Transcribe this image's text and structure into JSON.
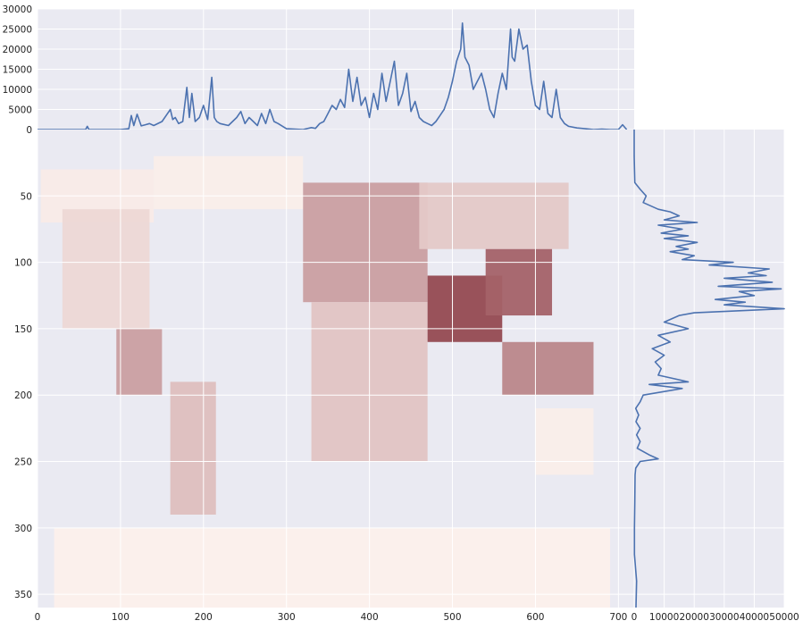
{
  "chart_data": [
    {
      "type": "heatmap",
      "name": "population-map",
      "description_free": true,
      "xlim": [
        0,
        719
      ],
      "ylim": [
        360,
        0
      ],
      "xticks": [
        0,
        100,
        200,
        300,
        400,
        500,
        600,
        700
      ],
      "yticks": [
        50,
        100,
        150,
        200,
        250,
        300,
        350
      ],
      "grid": true,
      "colormap": "Reds",
      "land_cells": [
        {
          "x0": 4,
          "x1": 140,
          "y0": 30,
          "y1": 70,
          "v": 0.04
        },
        {
          "x0": 30,
          "x1": 135,
          "y0": 60,
          "y1": 150,
          "v": 0.12
        },
        {
          "x0": 95,
          "x1": 150,
          "y0": 150,
          "y1": 200,
          "v": 0.35
        },
        {
          "x0": 160,
          "x1": 215,
          "y0": 190,
          "y1": 290,
          "v": 0.22
        },
        {
          "x0": 140,
          "x1": 320,
          "y0": 20,
          "y1": 60,
          "v": 0.03
        },
        {
          "x0": 320,
          "x1": 470,
          "y0": 40,
          "y1": 130,
          "v": 0.35
        },
        {
          "x0": 330,
          "x1": 470,
          "y0": 130,
          "y1": 250,
          "v": 0.2
        },
        {
          "x0": 460,
          "x1": 640,
          "y0": 40,
          "y1": 90,
          "v": 0.18
        },
        {
          "x0": 470,
          "x1": 560,
          "y0": 110,
          "y1": 160,
          "v": 0.7
        },
        {
          "x0": 540,
          "x1": 620,
          "y0": 90,
          "y1": 140,
          "v": 0.6
        },
        {
          "x0": 560,
          "x1": 670,
          "y0": 160,
          "y1": 200,
          "v": 0.45
        },
        {
          "x0": 600,
          "x1": 670,
          "y0": 210,
          "y1": 260,
          "v": 0.03
        },
        {
          "x0": 20,
          "x1": 690,
          "y0": 300,
          "y1": 360,
          "v": 0.02
        }
      ],
      "heat_color_low": "#fff5f0",
      "heat_color_high": "#67000d"
    },
    {
      "type": "line",
      "name": "column-sum",
      "ylim": [
        0,
        30000
      ],
      "yticks": [
        0,
        5000,
        10000,
        15000,
        20000,
        25000,
        30000
      ],
      "color": "#4c72b0",
      "x": [
        0,
        20,
        40,
        58,
        60,
        62,
        80,
        100,
        110,
        113,
        116,
        120,
        125,
        130,
        135,
        140,
        150,
        160,
        163,
        166,
        170,
        175,
        180,
        183,
        186,
        190,
        195,
        200,
        205,
        210,
        213,
        216,
        220,
        230,
        240,
        245,
        250,
        255,
        260,
        265,
        270,
        275,
        280,
        285,
        290,
        300,
        320,
        330,
        335,
        340,
        345,
        350,
        355,
        360,
        365,
        370,
        375,
        380,
        385,
        390,
        395,
        400,
        405,
        410,
        415,
        420,
        425,
        430,
        435,
        440,
        445,
        450,
        455,
        460,
        465,
        470,
        475,
        480,
        485,
        490,
        495,
        500,
        505,
        510,
        512,
        515,
        520,
        525,
        530,
        535,
        540,
        545,
        550,
        555,
        560,
        565,
        570,
        572,
        575,
        580,
        585,
        590,
        595,
        600,
        605,
        610,
        615,
        620,
        625,
        630,
        635,
        640,
        650,
        660,
        670,
        680,
        690,
        700,
        705,
        710
      ],
      "y": [
        0,
        0,
        0,
        0,
        800,
        0,
        0,
        0,
        200,
        3500,
        1000,
        3800,
        900,
        1200,
        1500,
        1000,
        2000,
        5000,
        2500,
        3000,
        1500,
        2000,
        10500,
        3000,
        9000,
        2000,
        3000,
        6000,
        2500,
        13000,
        3000,
        2000,
        1500,
        1000,
        3000,
        4500,
        1500,
        3000,
        2000,
        1000,
        4000,
        1500,
        5000,
        2000,
        1500,
        200,
        0,
        500,
        300,
        1500,
        2000,
        4000,
        6000,
        5000,
        7500,
        5500,
        15000,
        7000,
        13000,
        6000,
        8000,
        3000,
        9000,
        5000,
        14000,
        7000,
        12000,
        17000,
        6000,
        9000,
        14000,
        4500,
        7000,
        3000,
        2000,
        1500,
        1000,
        2000,
        3500,
        5000,
        8000,
        12000,
        17000,
        20000,
        26500,
        18000,
        16000,
        10000,
        12000,
        14000,
        10000,
        5000,
        3000,
        9000,
        14000,
        10000,
        25000,
        18000,
        17000,
        25000,
        20000,
        21000,
        12000,
        6000,
        5000,
        12000,
        4000,
        3000,
        10000,
        3000,
        1500,
        800,
        400,
        200,
        0,
        100,
        0,
        0,
        1200,
        0
      ]
    },
    {
      "type": "line",
      "name": "row-sum",
      "xlim": [
        0,
        50000
      ],
      "xticks": [
        0,
        10000,
        20000,
        30000,
        40000,
        50000
      ],
      "color": "#4c72b0",
      "row": [
        0,
        20,
        40,
        45,
        50,
        55,
        60,
        62,
        65,
        68,
        70,
        72,
        75,
        78,
        80,
        82,
        85,
        88,
        90,
        92,
        95,
        98,
        100,
        102,
        105,
        108,
        110,
        112,
        115,
        118,
        120,
        122,
        125,
        128,
        130,
        132,
        135,
        138,
        140,
        145,
        150,
        155,
        160,
        165,
        170,
        175,
        180,
        185,
        190,
        192,
        195,
        200,
        205,
        210,
        215,
        220,
        225,
        230,
        235,
        240,
        245,
        248,
        250,
        255,
        260,
        280,
        300,
        320,
        340,
        360
      ],
      "value": [
        0,
        0,
        200,
        2000,
        4000,
        3000,
        8000,
        12000,
        15000,
        10000,
        21000,
        8000,
        16000,
        9000,
        18000,
        10000,
        21000,
        14000,
        18000,
        12000,
        20000,
        16000,
        33000,
        25000,
        45000,
        38000,
        44000,
        30000,
        46000,
        28000,
        49000,
        35000,
        40000,
        27000,
        37000,
        30000,
        50000,
        20000,
        15000,
        10000,
        18000,
        8000,
        12000,
        6000,
        10000,
        7000,
        9000,
        8000,
        18000,
        5000,
        16000,
        3000,
        2000,
        500,
        1500,
        600,
        2000,
        800,
        2000,
        1000,
        5000,
        8000,
        2000,
        500,
        300,
        200,
        100,
        100,
        800,
        600
      ]
    }
  ]
}
